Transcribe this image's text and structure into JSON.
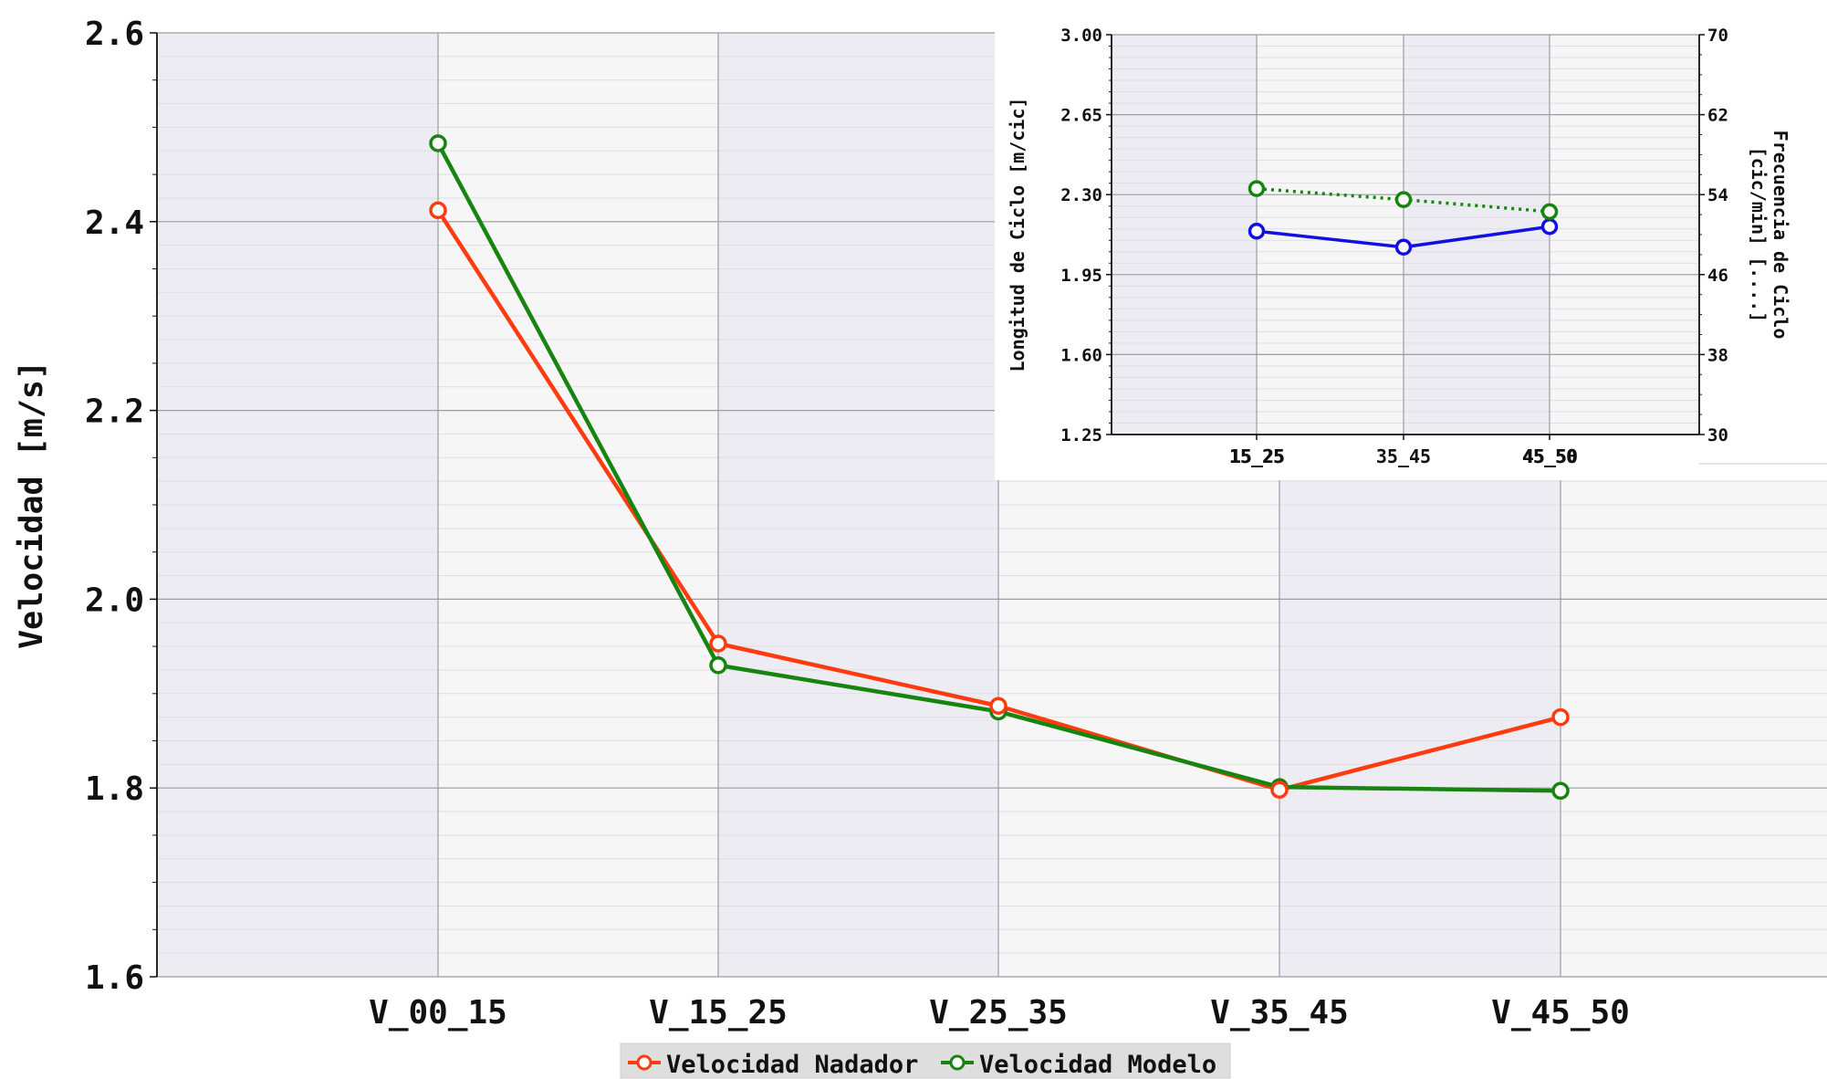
{
  "chart_data": [
    {
      "id": "main",
      "type": "line",
      "categories": [
        "V_00_15",
        "V_15_25",
        "V_25_35",
        "V_35_45",
        "V_45_50"
      ],
      "series": [
        {
          "name": "Velocidad Nadador",
          "color": "#ff3b0f",
          "values": [
            2.412,
            1.953,
            1.887,
            1.798,
            1.875
          ]
        },
        {
          "name": "Velocidad Modelo",
          "color": "#17840f",
          "values": [
            2.483,
            1.93,
            1.881,
            1.801,
            1.797
          ]
        }
      ],
      "ylabel": "Velocidad [m/s]",
      "xlabel": "",
      "ylim": [
        1.6,
        2.6
      ],
      "yticks": [
        "1.6",
        "1.8",
        "2.0",
        "2.2",
        "2.4",
        "2.6"
      ],
      "grid": true,
      "legend_position": "bottom-center"
    },
    {
      "id": "inset",
      "type": "line",
      "categories": [
        "15_25",
        "35_45",
        "45_50"
      ],
      "secondary_tick_labels": [
        "15_25",
        "45_50"
      ],
      "series": [
        {
          "axis": "left",
          "color": "#1010e0",
          "style": "solid",
          "values": [
            2.14,
            2.07,
            2.16
          ]
        },
        {
          "axis": "right",
          "color": "#17840f",
          "style": "dotted",
          "values": [
            54.6,
            53.5,
            52.3
          ]
        }
      ],
      "ylabel": "Longitud de Ciclo [m/cic]",
      "ylim": [
        1.25,
        3.0
      ],
      "yticks": [
        "1.25",
        "1.60",
        "1.95",
        "2.30",
        "2.65",
        "3.00"
      ],
      "y2label_line1": "Frecuencia de Ciclo",
      "y2label_line2": "[cic/min] [....]",
      "y2lim": [
        30,
        70
      ],
      "y2ticks": [
        "30",
        "38",
        "46",
        "54",
        "62",
        "70"
      ],
      "grid": true
    }
  ]
}
